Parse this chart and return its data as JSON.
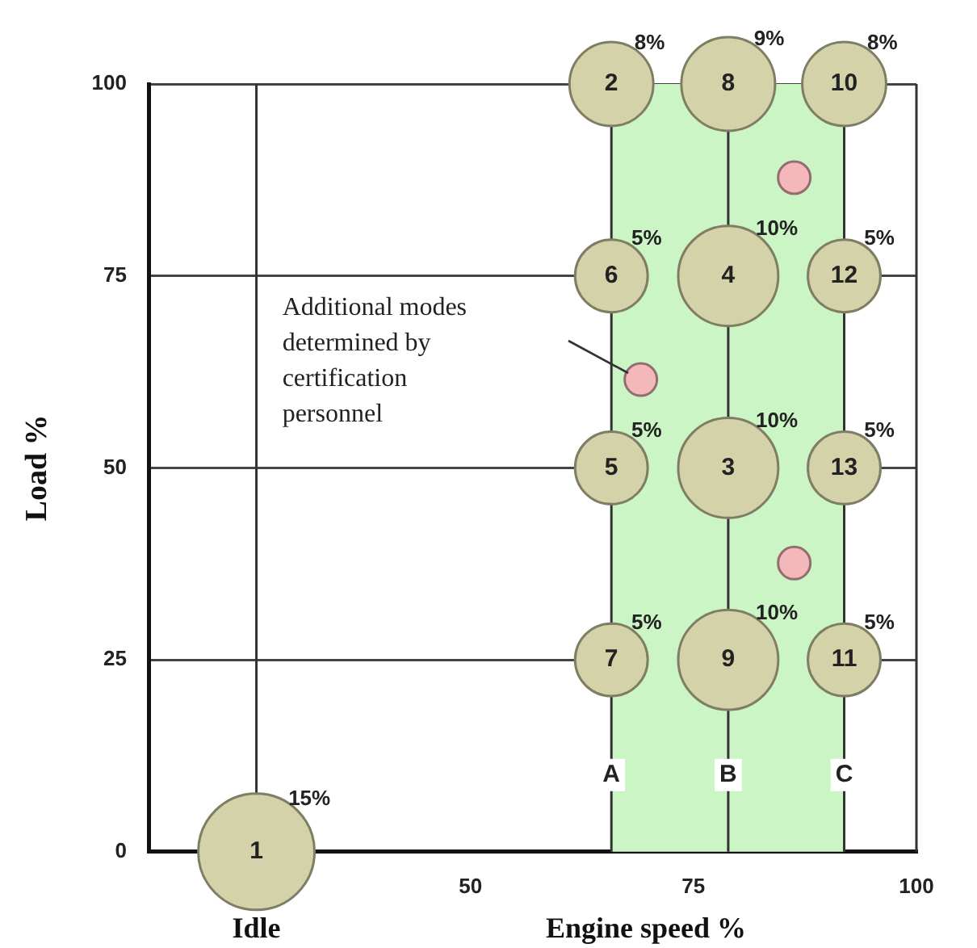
{
  "chart_data": {
    "type": "bubble",
    "xlabel": "Engine speed %",
    "ylabel": "Load %",
    "xlim": [
      14,
      100
    ],
    "xticks": [
      50,
      75,
      100
    ],
    "ylim": [
      0,
      100
    ],
    "yticks": [
      0,
      25,
      50,
      75,
      100
    ],
    "grid": "y",
    "legend": false,
    "marker": "circle",
    "series": [
      {
        "color": "#d4d2a8",
        "x": [
          26,
          65.8,
          78.9,
          91.9,
          65.8,
          78.9,
          91.9,
          65.8,
          78.9,
          91.9,
          65.8,
          78.9,
          91.9
        ],
        "values": [
          0,
          100,
          100,
          100,
          75,
          75,
          75,
          50,
          50,
          50,
          25,
          25,
          25
        ],
        "sizes": [
          1,
          0.52,
          0.65,
          0.52,
          0.39,
          0.74,
          0.39,
          0.39,
          0.74,
          0.39,
          0.39,
          0.74,
          0.39
        ]
      },
      {
        "type": "scatter",
        "color": "#f4b8ba",
        "x": [
          69.1,
          86.3,
          86.3
        ],
        "values": [
          61.5,
          87.8,
          37.6
        ]
      }
    ],
    "ref_lines": [
      {
        "axis": "x",
        "value": 26
      },
      {
        "axis": "x",
        "value": 65.8
      },
      {
        "axis": "x",
        "value": 78.9
      },
      {
        "axis": "x",
        "value": 91.9
      },
      {
        "axis": "x",
        "value": 100
      }
    ],
    "bands": [
      {
        "axis": "x",
        "from": 65.8,
        "to": 91.9,
        "color": "#ccf5c6"
      }
    ],
    "annotations": [
      {
        "text": "1",
        "x": 26,
        "y": 0
      },
      {
        "text": "2",
        "x": 65.8,
        "y": 100
      },
      {
        "text": "8",
        "x": 78.9,
        "y": 100
      },
      {
        "text": "10",
        "x": 91.9,
        "y": 100
      },
      {
        "text": "6",
        "x": 65.8,
        "y": 75
      },
      {
        "text": "4",
        "x": 78.9,
        "y": 75
      },
      {
        "text": "12",
        "x": 91.9,
        "y": 75
      },
      {
        "text": "5",
        "x": 65.8,
        "y": 50
      },
      {
        "text": "3",
        "x": 78.9,
        "y": 50
      },
      {
        "text": "13",
        "x": 91.9,
        "y": 50
      },
      {
        "text": "7",
        "x": 65.8,
        "y": 25
      },
      {
        "text": "9",
        "x": 78.9,
        "y": 25
      },
      {
        "text": "11",
        "x": 91.9,
        "y": 25
      },
      {
        "text": "15%",
        "x": 26,
        "y": 0
      },
      {
        "text": "8%",
        "x": 65.8,
        "y": 100
      },
      {
        "text": "9%",
        "x": 78.9,
        "y": 100
      },
      {
        "text": "8%",
        "x": 91.9,
        "y": 100
      },
      {
        "text": "5%",
        "x": 65.8,
        "y": 75
      },
      {
        "text": "10%",
        "x": 78.9,
        "y": 75
      },
      {
        "text": "5%",
        "x": 91.9,
        "y": 75
      },
      {
        "text": "5%",
        "x": 65.8,
        "y": 50
      },
      {
        "text": "10%",
        "x": 78.9,
        "y": 50
      },
      {
        "text": "5%",
        "x": 91.9,
        "y": 50
      },
      {
        "text": "5%",
        "x": 65.8,
        "y": 25
      },
      {
        "text": "10%",
        "x": 78.9,
        "y": 25
      },
      {
        "text": "5%",
        "x": 91.9,
        "y": 25
      },
      {
        "text": "A",
        "x": 65.8,
        "y": 10
      },
      {
        "text": "B",
        "x": 78.9,
        "y": 10
      },
      {
        "text": "C",
        "x": 91.9,
        "y": 10
      },
      "Idle",
      "Additional modes determined by certification personnel"
    ]
  }
}
